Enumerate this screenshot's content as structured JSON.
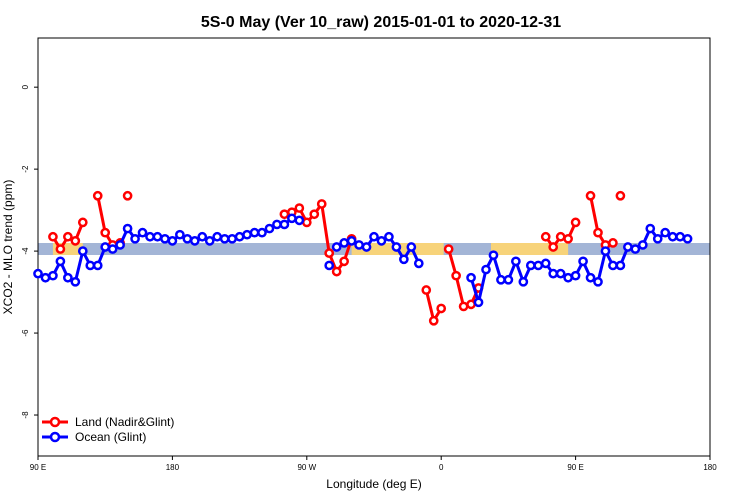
{
  "chart_data": {
    "type": "line",
    "title": "5S-0 May (Ver 10_raw)   2015-01-01 to 2020-12-31",
    "xlabel": "Longitude (deg E)",
    "ylabel": "XCO2 - MLO trend (ppm)",
    "x_ticks": [
      "90 E",
      "180",
      "90 W",
      "0",
      "90 E",
      "180"
    ],
    "y_ticks": [
      "0",
      "-2",
      "-4",
      "-6",
      "-8"
    ],
    "ylim": [
      -9,
      1.2
    ],
    "grid": false,
    "legend_placement": "bottom-left",
    "colors": {
      "land": "#ff0000",
      "ocean": "#0000ff",
      "band_ocean": "#a3b5d6",
      "band_land": "#f7d37a"
    },
    "surface_band": {
      "y": -3.95,
      "land_segments_x": [
        [
          6,
          18
        ],
        [
          126,
          163
        ],
        [
          182,
          213
        ],
        [
          376,
          389
        ],
        [
          406,
          419
        ]
      ]
    },
    "series": [
      {
        "name": "Land (Nadir&Glint)",
        "color": "#ff0000",
        "segments": [
          [
            [
              6,
              -3.65
            ],
            [
              9,
              -3.95
            ],
            [
              12,
              -3.65
            ],
            [
              15,
              -3.75
            ],
            [
              18,
              -3.3
            ]
          ],
          [
            [
              24,
              -2.65
            ],
            [
              27,
              -3.55
            ],
            [
              30,
              -3.85
            ],
            [
              33,
              -3.8
            ]
          ],
          [
            [
              36,
              -2.65
            ]
          ],
          [
            [
              99,
              -3.1
            ],
            [
              102,
              -3.05
            ],
            [
              105,
              -2.95
            ],
            [
              108,
              -3.3
            ],
            [
              111,
              -3.1
            ],
            [
              114,
              -2.85
            ],
            [
              117,
              -4.05
            ],
            [
              120,
              -4.5
            ],
            [
              123,
              -4.25
            ],
            [
              126,
              -3.7
            ]
          ],
          [
            [
              156,
              -4.95
            ],
            [
              159,
              -5.7
            ],
            [
              162,
              -5.4
            ]
          ],
          [
            [
              165,
              -3.95
            ],
            [
              168,
              -4.6
            ],
            [
              171,
              -5.35
            ],
            [
              174,
              -5.3
            ],
            [
              177,
              -4.9
            ]
          ],
          [
            [
              204,
              -3.65
            ],
            [
              207,
              -3.9
            ],
            [
              210,
              -3.65
            ],
            [
              213,
              -3.7
            ],
            [
              216,
              -3.3
            ]
          ],
          [
            [
              222,
              -2.65
            ],
            [
              225,
              -3.55
            ],
            [
              228,
              -3.85
            ],
            [
              231,
              -3.8
            ]
          ],
          [
            [
              234,
              -2.65
            ]
          ]
        ]
      },
      {
        "name": "Ocean (Glint)",
        "color": "#0000ff",
        "segments": [
          [
            [
              0,
              -4.55
            ],
            [
              3,
              -4.65
            ],
            [
              6,
              -4.6
            ],
            [
              9,
              -4.25
            ],
            [
              12,
              -4.65
            ],
            [
              15,
              -4.75
            ],
            [
              18,
              -4.0
            ],
            [
              21,
              -4.35
            ],
            [
              24,
              -4.35
            ],
            [
              27,
              -3.9
            ],
            [
              30,
              -3.95
            ],
            [
              33,
              -3.85
            ],
            [
              36,
              -3.45
            ],
            [
              39,
              -3.7
            ],
            [
              42,
              -3.55
            ],
            [
              45,
              -3.65
            ],
            [
              48,
              -3.65
            ],
            [
              51,
              -3.7
            ],
            [
              54,
              -3.75
            ],
            [
              57,
              -3.6
            ],
            [
              60,
              -3.7
            ],
            [
              63,
              -3.75
            ],
            [
              66,
              -3.65
            ],
            [
              69,
              -3.75
            ],
            [
              72,
              -3.65
            ],
            [
              75,
              -3.7
            ],
            [
              78,
              -3.7
            ],
            [
              81,
              -3.65
            ],
            [
              84,
              -3.6
            ],
            [
              87,
              -3.55
            ],
            [
              90,
              -3.55
            ],
            [
              93,
              -3.45
            ],
            [
              96,
              -3.35
            ],
            [
              99,
              -3.35
            ],
            [
              102,
              -3.2
            ],
            [
              105,
              -3.25
            ]
          ],
          [
            [
              117,
              -4.35
            ]
          ],
          [
            [
              120,
              -3.9
            ],
            [
              123,
              -3.8
            ],
            [
              126,
              -3.75
            ],
            [
              129,
              -3.85
            ],
            [
              132,
              -3.9
            ],
            [
              135,
              -3.65
            ],
            [
              138,
              -3.75
            ],
            [
              141,
              -3.65
            ],
            [
              144,
              -3.9
            ],
            [
              147,
              -4.2
            ],
            [
              150,
              -3.9
            ],
            [
              153,
              -4.3
            ]
          ],
          [
            [
              174,
              -4.65
            ],
            [
              177,
              -5.25
            ],
            [
              180,
              -4.45
            ],
            [
              183,
              -4.1
            ],
            [
              186,
              -4.7
            ],
            [
              189,
              -4.7
            ],
            [
              192,
              -4.25
            ],
            [
              195,
              -4.75
            ],
            [
              198,
              -4.35
            ],
            [
              201,
              -4.35
            ],
            [
              204,
              -4.3
            ],
            [
              207,
              -4.55
            ],
            [
              210,
              -4.55
            ],
            [
              213,
              -4.65
            ],
            [
              216,
              -4.6
            ],
            [
              219,
              -4.25
            ],
            [
              222,
              -4.65
            ],
            [
              225,
              -4.75
            ],
            [
              228,
              -4.0
            ],
            [
              231,
              -4.35
            ],
            [
              234,
              -4.35
            ],
            [
              237,
              -3.9
            ],
            [
              240,
              -3.95
            ],
            [
              243,
              -3.85
            ],
            [
              246,
              -3.45
            ],
            [
              249,
              -3.7
            ],
            [
              252,
              -3.55
            ],
            [
              255,
              -3.65
            ],
            [
              258,
              -3.65
            ],
            [
              261,
              -3.7
            ]
          ]
        ]
      }
    ]
  }
}
